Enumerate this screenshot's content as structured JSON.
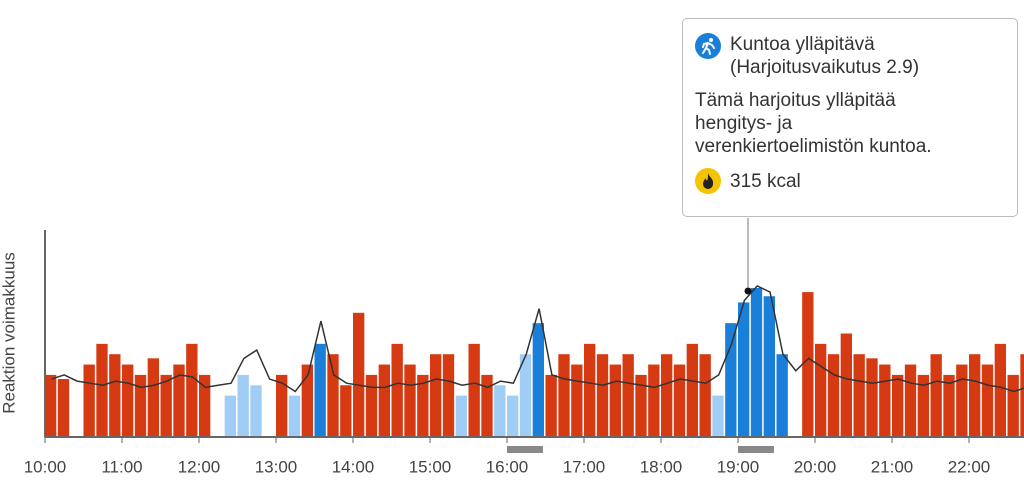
{
  "chart_data": {
    "type": "bar_line",
    "y_label": "Reaktion voimakkuus",
    "x": [
      600,
      610,
      620,
      630,
      640,
      650,
      660,
      670,
      680,
      690,
      700,
      710,
      720,
      730,
      740,
      750,
      760,
      770,
      780,
      790,
      800,
      810,
      820,
      830,
      840,
      850,
      860,
      870,
      880,
      890,
      900,
      910,
      920,
      930,
      940,
      950,
      960,
      970,
      980,
      990,
      1000,
      1010,
      1020,
      1030,
      1040,
      1050,
      1060,
      1070,
      1080,
      1090,
      1100,
      1110,
      1120,
      1130,
      1140,
      1150,
      1160,
      1170,
      1180,
      1190,
      1200,
      1210,
      1220,
      1230,
      1240,
      1250,
      1260,
      1270,
      1280,
      1290,
      1300,
      1310,
      1320,
      1330,
      1340,
      1350,
      1360
    ],
    "xlim": [
      600,
      1363
    ],
    "xticks": [
      {
        "value": 600,
        "label": "10:00"
      },
      {
        "value": 660,
        "label": "11:00"
      },
      {
        "value": 720,
        "label": "12:00"
      },
      {
        "value": 780,
        "label": "13:00"
      },
      {
        "value": 840,
        "label": "14:00"
      },
      {
        "value": 900,
        "label": "15:00"
      },
      {
        "value": 960,
        "label": "16:00"
      },
      {
        "value": 1020,
        "label": "17:00"
      },
      {
        "value": 1080,
        "label": "18:00"
      },
      {
        "value": 1140,
        "label": "19:00"
      },
      {
        "value": 1200,
        "label": "20:00"
      },
      {
        "value": 1260,
        "label": "21:00"
      },
      {
        "value": 1320,
        "label": "22:00"
      }
    ],
    "ylim": [
      0,
      100
    ],
    "series": [
      {
        "type": "bar",
        "values": [
          30,
          28,
          null,
          35,
          45,
          40,
          35,
          30,
          38,
          30,
          35,
          45,
          30,
          null,
          20,
          30,
          25,
          null,
          30,
          20,
          35,
          45,
          40,
          25,
          60,
          30,
          35,
          45,
          35,
          30,
          40,
          40,
          20,
          45,
          30,
          25,
          20,
          40,
          55,
          30,
          40,
          35,
          45,
          40,
          35,
          40,
          30,
          35,
          40,
          35,
          45,
          40,
          20,
          55,
          65,
          72,
          68,
          40,
          null,
          70,
          45,
          40,
          50,
          40,
          38,
          35,
          30,
          35,
          30,
          40,
          30,
          35,
          40,
          35,
          45,
          30,
          40
        ],
        "colors": [
          "#d63a12",
          "#d63a12",
          null,
          "#d63a12",
          "#d63a12",
          "#d63a12",
          "#d63a12",
          "#d63a12",
          "#d63a12",
          "#d63a12",
          "#d63a12",
          "#d63a12",
          "#d63a12",
          null,
          "#9fcdf5",
          "#9fcdf5",
          "#9fcdf5",
          null,
          "#d63a12",
          "#9fcdf5",
          "#d63a12",
          "#1a7fd9",
          "#d63a12",
          "#d63a12",
          "#d63a12",
          "#d63a12",
          "#d63a12",
          "#d63a12",
          "#d63a12",
          "#d63a12",
          "#d63a12",
          "#d63a12",
          "#9fcdf5",
          "#d63a12",
          "#d63a12",
          "#9fcdf5",
          "#9fcdf5",
          "#9fcdf5",
          "#1a7fd9",
          "#d63a12",
          "#d63a12",
          "#d63a12",
          "#d63a12",
          "#d63a12",
          "#d63a12",
          "#d63a12",
          "#d63a12",
          "#d63a12",
          "#d63a12",
          "#d63a12",
          "#d63a12",
          "#d63a12",
          "#9fcdf5",
          "#1a7fd9",
          "#1a7fd9",
          "#1a7fd9",
          "#1a7fd9",
          "#1a7fd9",
          null,
          "#d63a12",
          "#d63a12",
          "#d63a12",
          "#d63a12",
          "#d63a12",
          "#d63a12",
          "#d63a12",
          "#d63a12",
          "#d63a12",
          "#d63a12",
          "#d63a12",
          "#d63a12",
          "#d63a12",
          "#d63a12",
          "#d63a12",
          "#d63a12",
          "#d63a12",
          "#d63a12"
        ]
      },
      {
        "type": "line",
        "color": "#333333",
        "values": [
          28,
          30,
          27,
          26,
          25,
          27,
          26,
          24,
          25,
          27,
          30,
          29,
          24,
          25,
          26,
          38,
          42,
          28,
          26,
          22,
          30,
          56,
          30,
          26,
          25,
          24,
          24,
          26,
          25,
          26,
          28,
          27,
          25,
          26,
          24,
          27,
          26,
          40,
          62,
          30,
          28,
          27,
          26,
          25,
          27,
          26,
          25,
          24,
          26,
          28,
          27,
          26,
          30,
          45,
          66,
          73,
          70,
          40,
          32,
          38,
          34,
          30,
          28,
          27,
          26,
          27,
          28,
          26,
          25,
          27,
          26,
          28,
          27,
          25,
          24,
          22,
          24
        ]
      }
    ],
    "markers": {
      "start": [
        960,
        1140
      ],
      "end": [
        988,
        1168
      ],
      "color": "#888888"
    }
  },
  "tooltip": {
    "title": "Kuntoa ylläpitävä",
    "subtitle": "(Harjoitusvaikutus 2.9)",
    "description": [
      "Tämä harjoitus ylläpitää",
      "hengitys- ja",
      "verenkiertoelimistön kuntoa."
    ],
    "energy": "315 kcal"
  }
}
